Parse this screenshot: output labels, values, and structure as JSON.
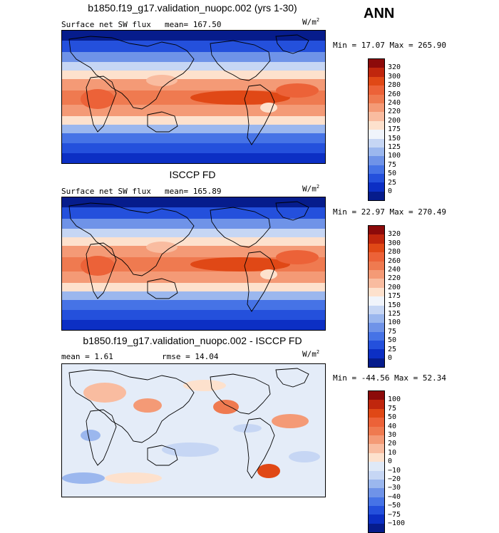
{
  "season": "ANN",
  "units_base": "W/m",
  "units_sup": "2",
  "panels": [
    {
      "title": "b1850.f19_g17.validation_nuopc.002 (yrs 1-30)",
      "subtitle": "Surface net SW flux",
      "stat": "mean= 167.50",
      "minmax": "Min =  17.07 Max = 265.90",
      "map_style": "abs"
    },
    {
      "title": "ISCCP FD",
      "subtitle": "Surface net SW flux",
      "stat": "mean= 165.89",
      "minmax": "Min =  22.97 Max = 270.49",
      "map_style": "abs"
    },
    {
      "title": "b1850.f19_g17.validation_nuopc.002 - ISCCP FD",
      "subtitle": "mean =   1.61",
      "stat": "rmse =  14.04",
      "minmax": "Min = -44.56 Max =  52.34",
      "map_style": "diff"
    }
  ],
  "colorbar_abs": {
    "labels": [
      "320",
      "300",
      "280",
      "260",
      "240",
      "220",
      "200",
      "175",
      "150",
      "125",
      "100",
      "75",
      "50",
      "25",
      "0"
    ],
    "colors": [
      "#8c0a0a",
      "#c0260d",
      "#e04816",
      "#ec6238",
      "#ef7a50",
      "#f49a76",
      "#f9bca0",
      "#fde1cd",
      "#f0f4fb",
      "#c6d6f4",
      "#9bb7ee",
      "#6f93e8",
      "#4673e6",
      "#2450dc",
      "#0c2fc4",
      "#061c8c"
    ]
  },
  "colorbar_diff": {
    "labels": [
      "100",
      "75",
      "50",
      "40",
      "30",
      "20",
      "10",
      "0",
      "−10",
      "−20",
      "−30",
      "−40",
      "−50",
      "−75",
      "−100"
    ],
    "colors": [
      "#8c0a0a",
      "#c0260d",
      "#e04816",
      "#ec6238",
      "#ef7a50",
      "#f49a76",
      "#f9bca0",
      "#fde1cd",
      "#dfe9f7",
      "#c6d6f4",
      "#9bb7ee",
      "#6f93e8",
      "#4673e6",
      "#2450dc",
      "#0c2fc4",
      "#061c8c"
    ]
  }
}
